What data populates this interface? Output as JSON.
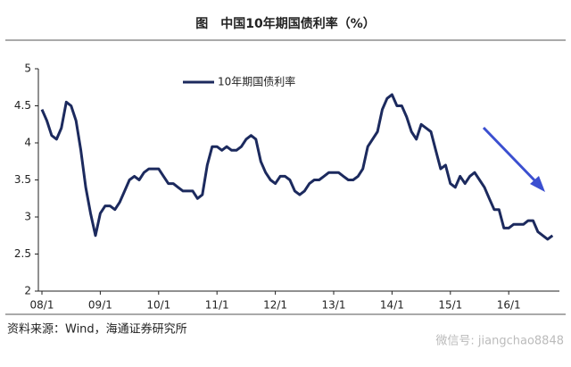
{
  "chart_data": {
    "type": "line",
    "title": "图　中国10年期国债利率（%）",
    "source": "资料来源：Wind，海通证券研究所",
    "watermark": "微信号: jiangchao8848",
    "categories": [
      "08/1",
      null,
      null,
      null,
      null,
      null,
      null,
      null,
      null,
      null,
      null,
      null,
      "09/1",
      null,
      null,
      null,
      null,
      null,
      null,
      null,
      null,
      null,
      null,
      null,
      "10/1",
      null,
      null,
      null,
      null,
      null,
      null,
      null,
      null,
      null,
      null,
      null,
      "11/1",
      null,
      null,
      null,
      null,
      null,
      null,
      null,
      null,
      null,
      null,
      null,
      "12/1",
      null,
      null,
      null,
      null,
      null,
      null,
      null,
      null,
      null,
      null,
      null,
      "13/1",
      null,
      null,
      null,
      null,
      null,
      null,
      null,
      null,
      null,
      null,
      null,
      "14/1",
      null,
      null,
      null,
      null,
      null,
      null,
      null,
      null,
      null,
      null,
      null,
      "15/1",
      null,
      null,
      null,
      null,
      null,
      null,
      null,
      null,
      null,
      null,
      null,
      "16/1",
      null,
      null,
      null,
      null,
      null,
      null,
      null,
      null,
      null
    ],
    "series": [
      {
        "name": "10年期国债利率",
        "color": "#1c2a5e",
        "values": [
          4.45,
          4.3,
          4.1,
          4.05,
          4.2,
          4.55,
          4.5,
          4.3,
          3.9,
          3.4,
          3.05,
          2.75,
          3.05,
          3.15,
          3.15,
          3.1,
          3.2,
          3.35,
          3.5,
          3.55,
          3.5,
          3.6,
          3.65,
          3.65,
          3.65,
          3.55,
          3.45,
          3.45,
          3.4,
          3.35,
          3.35,
          3.35,
          3.25,
          3.3,
          3.7,
          3.95,
          3.95,
          3.9,
          3.95,
          3.9,
          3.9,
          3.95,
          4.05,
          4.1,
          4.05,
          3.75,
          3.6,
          3.5,
          3.45,
          3.55,
          3.55,
          3.5,
          3.35,
          3.3,
          3.35,
          3.45,
          3.5,
          3.5,
          3.55,
          3.6,
          3.6,
          3.6,
          3.55,
          3.5,
          3.5,
          3.55,
          3.65,
          3.95,
          4.05,
          4.15,
          4.45,
          4.6,
          4.65,
          4.5,
          4.5,
          4.35,
          4.15,
          4.05,
          4.25,
          4.2,
          4.15,
          3.9,
          3.65,
          3.7,
          3.45,
          3.4,
          3.55,
          3.45,
          3.55,
          3.6,
          3.5,
          3.4,
          3.25,
          3.1,
          3.1,
          2.85,
          2.85,
          2.9,
          2.9,
          2.9,
          2.95,
          2.95,
          2.8,
          2.75,
          2.7,
          2.75
        ]
      }
    ],
    "ylim": [
      2,
      5
    ],
    "yticks": [
      2,
      2.5,
      3,
      3.5,
      4,
      4.5,
      5
    ],
    "grid": false,
    "legend": "top"
  }
}
